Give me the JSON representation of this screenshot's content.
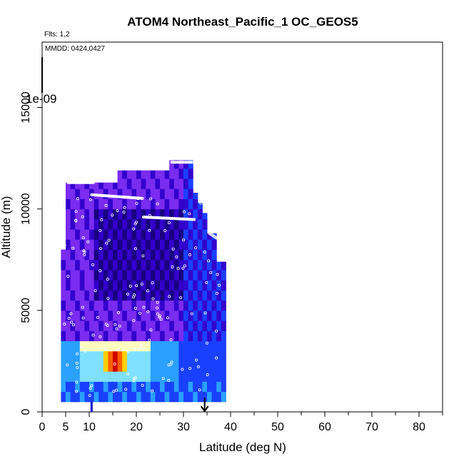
{
  "chart_data": {
    "type": "heatmap",
    "title": "ATOM4 Northeast_Pacific_1 OC_GEOS5",
    "flights_label": "Flts: 1,2",
    "date_label": "MMDD: 0424,0427",
    "color_scale_label": "1e-09",
    "xlabel": "Latitude (deg N)",
    "ylabel": "Altitude (m)",
    "xlim": [
      0,
      85
    ],
    "ylim": [
      0,
      18000
    ],
    "x_ticks": [
      0,
      5,
      10,
      20,
      30,
      40,
      50,
      60,
      70,
      80
    ],
    "x_minor_ticks": [
      15,
      25,
      35,
      45,
      55,
      65,
      75,
      85
    ],
    "y_ticks": [
      0,
      5000,
      10000,
      15000
    ],
    "markers": [
      {
        "name": "start-marker",
        "lat": 10.5,
        "alt_top": 500
      },
      {
        "name": "end-marker",
        "lat": 34.5,
        "alt_top": 700
      }
    ],
    "colormap": [
      "#1a0080",
      "#3300cc",
      "#7a2cf0",
      "#1a40ff",
      "#2aa0ff",
      "#80e0ff",
      "#ffffc0",
      "#ffd000",
      "#ff6000",
      "#d00000"
    ]
  }
}
